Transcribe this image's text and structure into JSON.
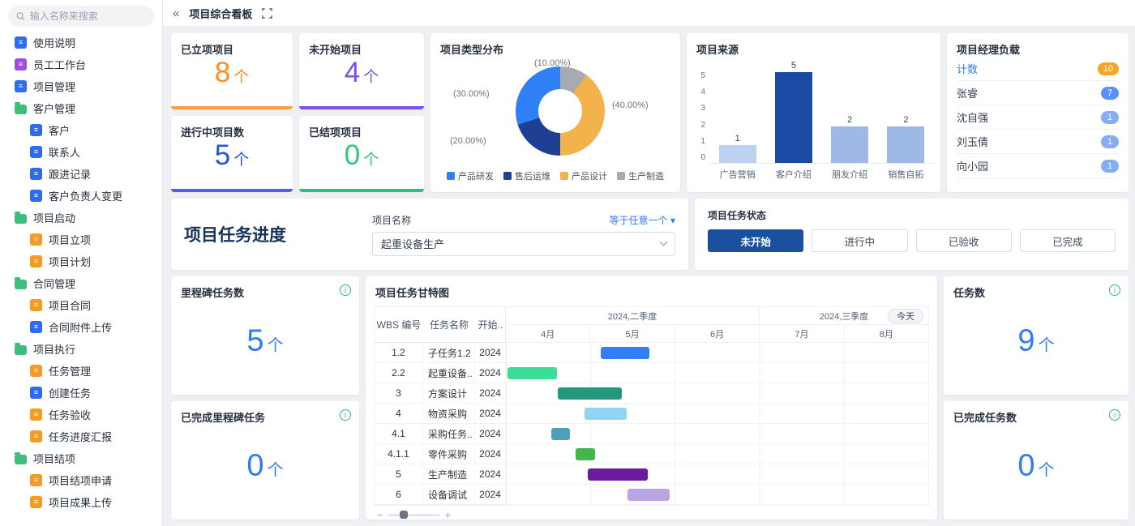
{
  "topbar": {
    "tab_label": "项目综合看板"
  },
  "sidebar": {
    "search_placeholder": "输入名称来搜索",
    "items": [
      {
        "label": "使用说明",
        "icon": "manual-icon",
        "color": "#2e6bef",
        "indent": 0,
        "folder": false
      },
      {
        "label": "员工工作台",
        "icon": "workbench-icon",
        "color": "#9c4fe0",
        "indent": 0,
        "folder": false
      },
      {
        "label": "项目管理",
        "icon": "project-management-icon",
        "color": "#2e6bef",
        "indent": 0,
        "folder": false
      },
      {
        "label": "客户管理",
        "icon": "folder-icon",
        "color": "#3fbd7b",
        "indent": 0,
        "folder": true
      },
      {
        "label": "客户",
        "icon": "customer-icon",
        "color": "#2e6bef",
        "indent": 1,
        "folder": false
      },
      {
        "label": "联系人",
        "icon": "contact-icon",
        "color": "#2e6bef",
        "indent": 1,
        "folder": false
      },
      {
        "label": "跟进记录",
        "icon": "followup-record-icon",
        "color": "#2e6bef",
        "indent": 1,
        "folder": false
      },
      {
        "label": "客户负责人变更",
        "icon": "owner-change-icon",
        "color": "#2e6bef",
        "indent": 1,
        "folder": false
      },
      {
        "label": "项目启动",
        "icon": "folder-icon",
        "color": "#3fbd7b",
        "indent": 0,
        "folder": true
      },
      {
        "label": "项目立项",
        "icon": "project-setup-icon",
        "color": "#f59a23",
        "indent": 1,
        "folder": false
      },
      {
        "label": "项目计划",
        "icon": "project-plan-icon",
        "color": "#f59a23",
        "indent": 1,
        "folder": false
      },
      {
        "label": "合同管理",
        "icon": "folder-icon",
        "color": "#3fbd7b",
        "indent": 0,
        "folder": true
      },
      {
        "label": "项目合同",
        "icon": "contract-icon",
        "color": "#f59a23",
        "indent": 1,
        "folder": false
      },
      {
        "label": "合同附件上传",
        "icon": "attachment-upload-icon",
        "color": "#2e6bef",
        "indent": 1,
        "folder": false
      },
      {
        "label": "项目执行",
        "icon": "folder-icon",
        "color": "#3fbd7b",
        "indent": 0,
        "folder": true
      },
      {
        "label": "任务管理",
        "icon": "task-management-icon",
        "color": "#f59a23",
        "indent": 1,
        "folder": false
      },
      {
        "label": "创建任务",
        "icon": "create-task-icon",
        "color": "#2e6bef",
        "indent": 1,
        "folder": false
      },
      {
        "label": "任务验收",
        "icon": "task-acceptance-icon",
        "color": "#f59a23",
        "indent": 1,
        "folder": false
      },
      {
        "label": "任务进度汇报",
        "icon": "task-progress-report-icon",
        "color": "#f59a23",
        "indent": 1,
        "folder": false
      },
      {
        "label": "项目结项",
        "icon": "folder-icon",
        "color": "#3fbd7b",
        "indent": 0,
        "folder": true
      },
      {
        "label": "项目结项申请",
        "icon": "closing-apply-icon",
        "color": "#f59a23",
        "indent": 1,
        "folder": false
      },
      {
        "label": "项目成果上传",
        "icon": "result-upload-icon",
        "color": "#f59a23",
        "indent": 1,
        "folder": false
      }
    ]
  },
  "stat_cards": [
    {
      "title": "已立项项目",
      "value": "8",
      "unit": "个",
      "color": "#ff8e1c",
      "bar": "#ff9e45"
    },
    {
      "title": "未开始项目",
      "value": "4",
      "unit": "个",
      "color": "#7a52f4",
      "bar": "#7a52f4"
    },
    {
      "title": "进行中项目数",
      "value": "5",
      "unit": "个",
      "color": "#2456e0",
      "bar": "#4d5ef5"
    },
    {
      "title": "已结项项目",
      "value": "0",
      "unit": "个",
      "color": "#2ec77e",
      "bar": "#2abf84"
    }
  ],
  "type_chart": {
    "type": "pie",
    "title": "项目类型分布",
    "slices": [
      {
        "label": "生产制造",
        "value": 10,
        "color": "#a7abb0"
      },
      {
        "label": "产品设计",
        "value": 40,
        "color": "#f2b34c"
      },
      {
        "label": "售后运维",
        "value": 20,
        "color": "#1d3f94"
      },
      {
        "label": "产品研发",
        "value": 30,
        "color": "#2f7ff7"
      }
    ],
    "pct_labels": {
      "top": "(10.00%)",
      "right": "(40.00%)",
      "bottom_left": "(20.00%)",
      "left": "(30.00%)"
    },
    "legend": [
      {
        "label": "产品研发",
        "color": "#2f7ff7"
      },
      {
        "label": "售后运维",
        "color": "#1d3f94"
      },
      {
        "label": "产品设计",
        "color": "#f2b34c"
      },
      {
        "label": "生产制造",
        "color": "#a7abb0"
      }
    ]
  },
  "source_chart": {
    "type": "bar",
    "title": "项目来源",
    "categories": [
      "广告营销",
      "客户介绍",
      "朋友介绍",
      "销售自拓"
    ],
    "values": [
      1,
      5,
      2,
      2
    ],
    "colors": [
      "#bcd2f0",
      "#1a4aa3",
      "#9fb9e6",
      "#9fb9e6"
    ],
    "ylim": [
      0,
      5
    ],
    "yticks": [
      "5",
      "4",
      "3",
      "2",
      "1",
      "0"
    ]
  },
  "manager_load": {
    "title": "项目经理负载",
    "rows": [
      {
        "name": "计数",
        "count": "10",
        "badge_color": "#f5a623",
        "name_color": "#2e7cf6"
      },
      {
        "name": "张睿",
        "count": "7",
        "badge_color": "#5b8ff9",
        "name_color": ""
      },
      {
        "name": "沈自强",
        "count": "1",
        "badge_color": "#85aef2",
        "name_color": ""
      },
      {
        "name": "刘玉倩",
        "count": "1",
        "badge_color": "#85aef2",
        "name_color": ""
      },
      {
        "name": "向小园",
        "count": "1",
        "badge_color": "#85aef2",
        "name_color": ""
      }
    ]
  },
  "filter": {
    "section_title": "项目任务进度",
    "project_name_label": "项目名称",
    "operator_label": "等于任意一个 ▾",
    "project_select_value": "起重设备生产",
    "status_label": "项目任务状态",
    "status_options": [
      "未开始",
      "进行中",
      "已验收",
      "已完成"
    ],
    "active_status": "未开始"
  },
  "metric_cards": [
    {
      "title": "里程碑任务数",
      "value": "5",
      "unit": "个"
    },
    {
      "title": "已完成里程碑任务",
      "value": "0",
      "unit": "个"
    },
    {
      "title": "任务数",
      "value": "9",
      "unit": "个"
    },
    {
      "title": "已完成任务数",
      "value": "0",
      "unit": "个"
    }
  ],
  "gantt": {
    "title": "项目任务甘特图",
    "columns": [
      "WBS 编号",
      "任务名称",
      "开始.."
    ],
    "quarters": [
      {
        "label": "2024,二季度",
        "span": 3
      },
      {
        "label": "2024,三季度",
        "span": 2
      }
    ],
    "months": [
      "4月",
      "5月",
      "6月",
      "7月",
      "8月"
    ],
    "today_button": "今天",
    "rows": [
      {
        "wbs": "1.2",
        "name": "子任务1.2",
        "start": "2024",
        "bar": {
          "left": 22.5,
          "width": 11.4,
          "color": "#2f7ff7"
        }
      },
      {
        "wbs": "2.2",
        "name": "起重设备..",
        "start": "2024",
        "bar": {
          "left": 0.3,
          "width": 11.8,
          "color": "#3ddc97"
        }
      },
      {
        "wbs": "3",
        "name": "方案设计",
        "start": "2024",
        "bar": {
          "left": 12.2,
          "width": 15.2,
          "color": "#23987b"
        }
      },
      {
        "wbs": "4",
        "name": "物资采购",
        "start": "2024",
        "bar": {
          "left": 18.6,
          "width": 10.0,
          "color": "#8fd4f2"
        }
      },
      {
        "wbs": "4.1",
        "name": "采购任务..",
        "start": "2024",
        "bar": {
          "left": 10.7,
          "width": 4.5,
          "color": "#4f9fba"
        }
      },
      {
        "wbs": "4.1.1",
        "name": "零件采购",
        "start": "2024",
        "bar": {
          "left": 16.5,
          "width": 4.7,
          "color": "#43b649"
        }
      },
      {
        "wbs": "5",
        "name": "生产制造",
        "start": "2024",
        "bar": {
          "left": 19.3,
          "width": 14.3,
          "color": "#6d1b9e"
        }
      },
      {
        "wbs": "6",
        "name": "设备调试",
        "start": "2024",
        "bar": {
          "left": 28.8,
          "width": 10.0,
          "color": "#b9a5e3"
        }
      }
    ]
  }
}
